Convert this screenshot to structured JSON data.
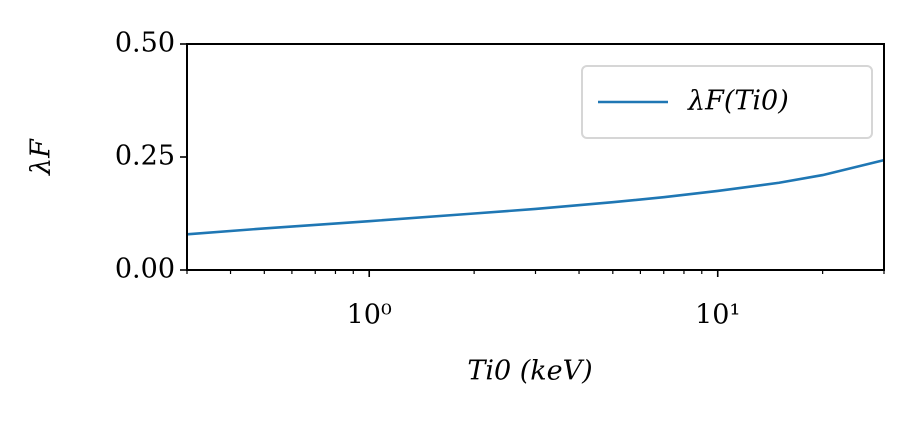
{
  "chart_data": {
    "type": "line",
    "xlabel": "Ti0 (keV)",
    "ylabel": "λF",
    "x": [
      0.3,
      0.5,
      1,
      2,
      3,
      5,
      7,
      10,
      15,
      20,
      30
    ],
    "series": [
      {
        "name": "λF(Ti0)",
        "color": "#1f77b4",
        "values": [
          0.079,
          0.092,
          0.108,
          0.125,
          0.135,
          0.15,
          0.161,
          0.175,
          0.193,
          0.21,
          0.243
        ]
      }
    ],
    "xlog": true,
    "xlim": [
      0.3,
      30
    ],
    "ylim": [
      0,
      0.5
    ],
    "xticks": [
      {
        "value": 1,
        "label": "10⁰"
      },
      {
        "value": 10,
        "label": "10¹"
      }
    ],
    "xminorticks": [
      0.3,
      0.4,
      0.5,
      0.6,
      0.7,
      0.8,
      0.9,
      2,
      3,
      4,
      5,
      6,
      7,
      8,
      9,
      20,
      30
    ],
    "yticks": [
      {
        "value": 0,
        "label": "0.00"
      },
      {
        "value": 0.25,
        "label": "0.25"
      },
      {
        "value": 0.5,
        "label": "0.50"
      }
    ],
    "grid": false,
    "legend": "upper right"
  }
}
